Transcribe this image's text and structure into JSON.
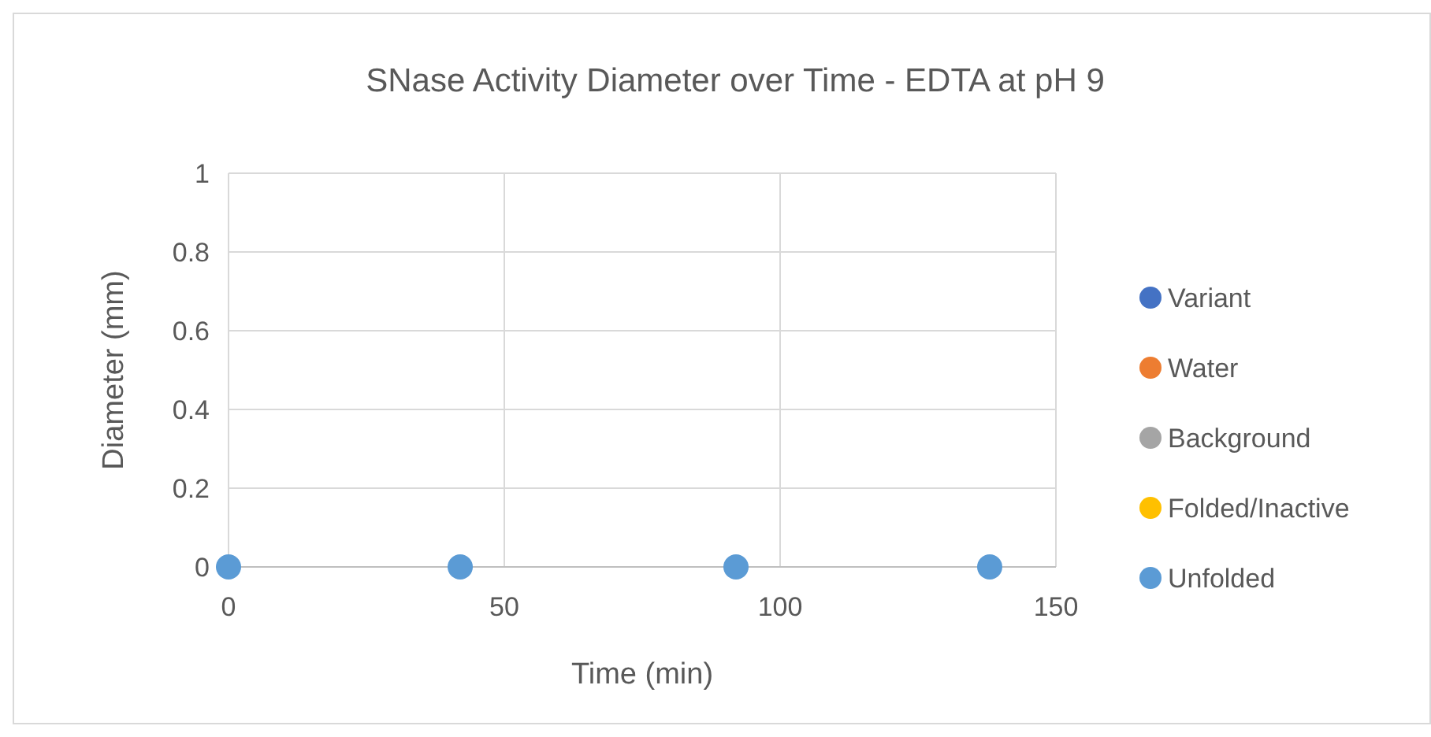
{
  "chart_data": {
    "type": "scatter",
    "title": "SNase Activity Diameter over Time - EDTA at pH 9",
    "xlabel": "Time (min)",
    "ylabel": "Diameter (mm)",
    "x": [
      0,
      42,
      92,
      138
    ],
    "series": [
      {
        "name": "Variant",
        "color": "#4472c4",
        "values": [
          null,
          null,
          null,
          null
        ]
      },
      {
        "name": "Water",
        "color": "#ed7d31",
        "values": [
          null,
          null,
          null,
          null
        ]
      },
      {
        "name": "Background",
        "color": "#a5a5a5",
        "values": [
          null,
          null,
          null,
          null
        ]
      },
      {
        "name": "Folded/Inactive",
        "color": "#ffc000",
        "values": [
          null,
          null,
          null,
          null
        ]
      },
      {
        "name": "Unfolded",
        "color": "#5b9bd5",
        "values": [
          0,
          0,
          0,
          0
        ]
      }
    ],
    "xlim": [
      0,
      150
    ],
    "xticks": [
      0,
      50,
      100,
      150
    ],
    "ylim": [
      0,
      1
    ],
    "yticks": [
      0,
      0.2,
      0.4,
      0.6,
      0.8,
      1
    ],
    "grid": true,
    "legend": "right",
    "marker": "circle"
  }
}
